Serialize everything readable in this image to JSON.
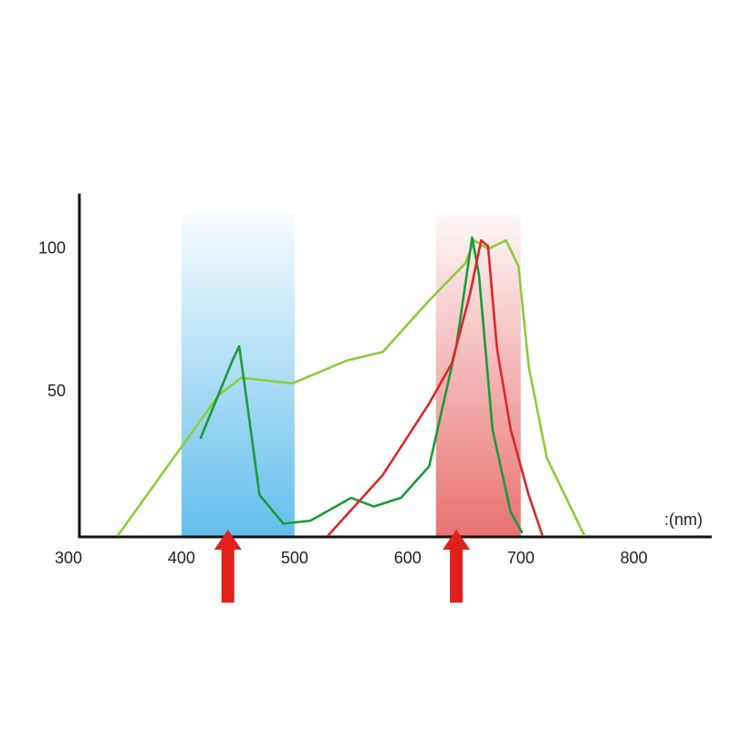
{
  "chart_data": {
    "type": "line",
    "x_label": ":(nm)",
    "xlim": [
      300,
      860
    ],
    "xticks": [
      300,
      400,
      500,
      600,
      700,
      800
    ],
    "ylim": [
      0,
      120
    ],
    "yticks": [
      50,
      100
    ],
    "bands": [
      {
        "start": 400,
        "end": 500,
        "color": "#5bbbeb"
      },
      {
        "start": 625,
        "end": 700,
        "color": "#e86a6a"
      }
    ],
    "markers": [
      441,
      643
    ],
    "marker_color": "#e0201b",
    "series": [
      {
        "color": "#8ccc3a",
        "x": [
          344,
          433,
          453,
          498,
          546,
          578,
          619,
          651,
          659,
          671,
          687,
          698,
          707,
          723,
          756
        ],
        "values": [
          0,
          49,
          55,
          53,
          61,
          64,
          82,
          95,
          103,
          100,
          103,
          94,
          59,
          27,
          0
        ]
      },
      {
        "color": "#1a9a3c",
        "x": [
          417,
          445,
          451,
          456,
          469,
          490,
          514,
          550,
          570,
          594,
          619,
          643,
          657,
          663,
          675,
          691,
          701
        ],
        "values": [
          34,
          61,
          66,
          52,
          14,
          4,
          5,
          13,
          10,
          13,
          24,
          66,
          104,
          91,
          37,
          8,
          1
        ]
      },
      {
        "color": "#d9282a",
        "x": [
          530,
          578,
          619,
          639,
          655,
          665,
          671,
          679,
          691,
          707,
          719
        ],
        "values": [
          0,
          21,
          46,
          60,
          84,
          103,
          101,
          65,
          37,
          14,
          0
        ]
      }
    ]
  }
}
